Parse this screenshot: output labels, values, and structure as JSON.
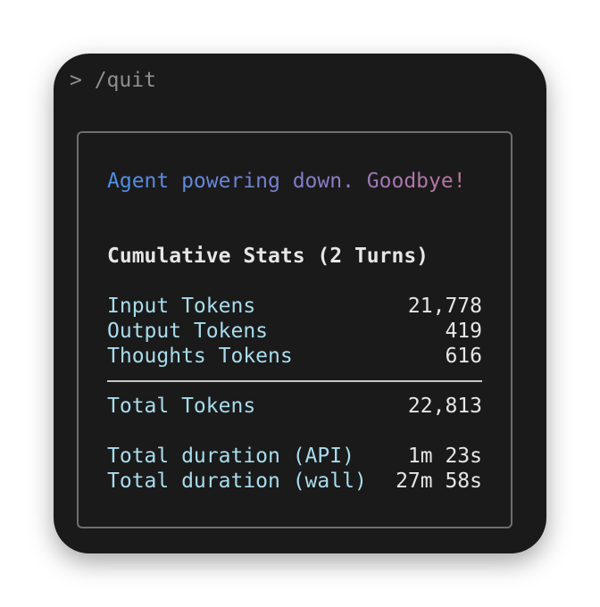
{
  "prompt": "> /quit",
  "goodbye": "Agent powering down. Goodbye!",
  "stats_title": "Cumulative Stats (2 Turns)",
  "tokens": [
    {
      "label": "Input Tokens",
      "value": "21,778"
    },
    {
      "label": "Output Tokens",
      "value": "419"
    },
    {
      "label": "Thoughts Tokens",
      "value": "616"
    }
  ],
  "total": {
    "label": "Total Tokens",
    "value": "22,813"
  },
  "durations": [
    {
      "label": "Total duration (API)",
      "value": "1m 23s"
    },
    {
      "label": "Total duration (wall)",
      "value": "27m 58s"
    }
  ],
  "colors": {
    "gradient_start": "#4f8fe6",
    "gradient_mid": "#7b7fd0",
    "gradient_end": "#c0739b",
    "label": "#a8dcec"
  }
}
